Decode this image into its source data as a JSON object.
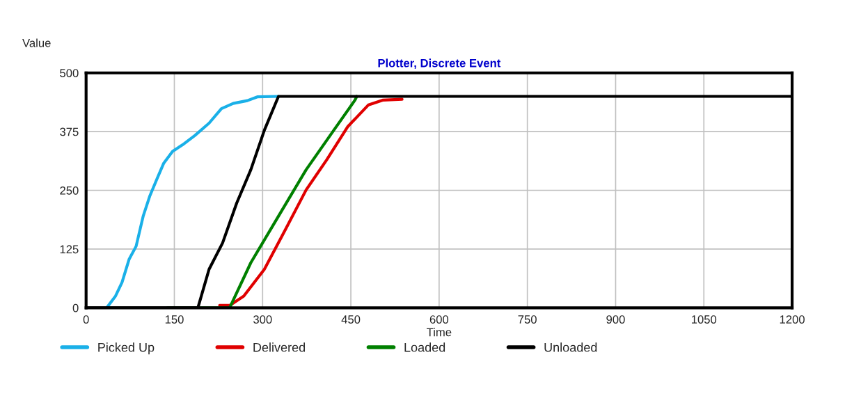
{
  "chart_data": {
    "type": "line",
    "title": "Plotter, Discrete Event",
    "xlabel": "Time",
    "ylabel": "Value",
    "xlim": [
      0,
      1200
    ],
    "xticks": [
      0,
      150,
      300,
      450,
      600,
      750,
      900,
      1050,
      1200
    ],
    "ylim": [
      0,
      500
    ],
    "yticks": [
      0,
      125,
      250,
      375,
      500
    ],
    "grid": true,
    "legend": "bottom",
    "marker": "none",
    "line_style": "solid",
    "series": [
      {
        "name": "Picked Up",
        "color": "#1ab0e8",
        "x": [
          35,
          50,
          61,
          73,
          85,
          97,
          108,
          120,
          132,
          147,
          164,
          185,
          209,
          230,
          250,
          274,
          291,
          327
        ],
        "values": [
          0,
          25,
          54,
          103,
          131,
          195,
          237,
          273,
          308,
          333,
          347,
          367,
          393,
          424,
          435,
          441,
          449,
          450
        ]
      },
      {
        "name": "Delivered",
        "color": "#e00000",
        "x": [
          227,
          244,
          268,
          303,
          339,
          374,
          409,
          445,
          480,
          504,
          537
        ],
        "values": [
          5,
          5,
          25,
          82,
          167,
          251,
          315,
          386,
          432,
          442,
          444
        ]
      },
      {
        "name": "Loaded",
        "color": "#008000",
        "x": [
          138,
          244,
          280,
          327,
          374,
          421,
          457,
          460
        ],
        "values": [
          0,
          0,
          96,
          195,
          294,
          378,
          442,
          450
        ]
      },
      {
        "name": "Unloaded",
        "color": "#000000",
        "x": [
          0,
          190,
          209,
          232,
          256,
          280,
          303,
          327,
          1200
        ],
        "values": [
          0,
          0,
          82,
          138,
          223,
          294,
          378,
          450,
          450
        ]
      }
    ]
  }
}
